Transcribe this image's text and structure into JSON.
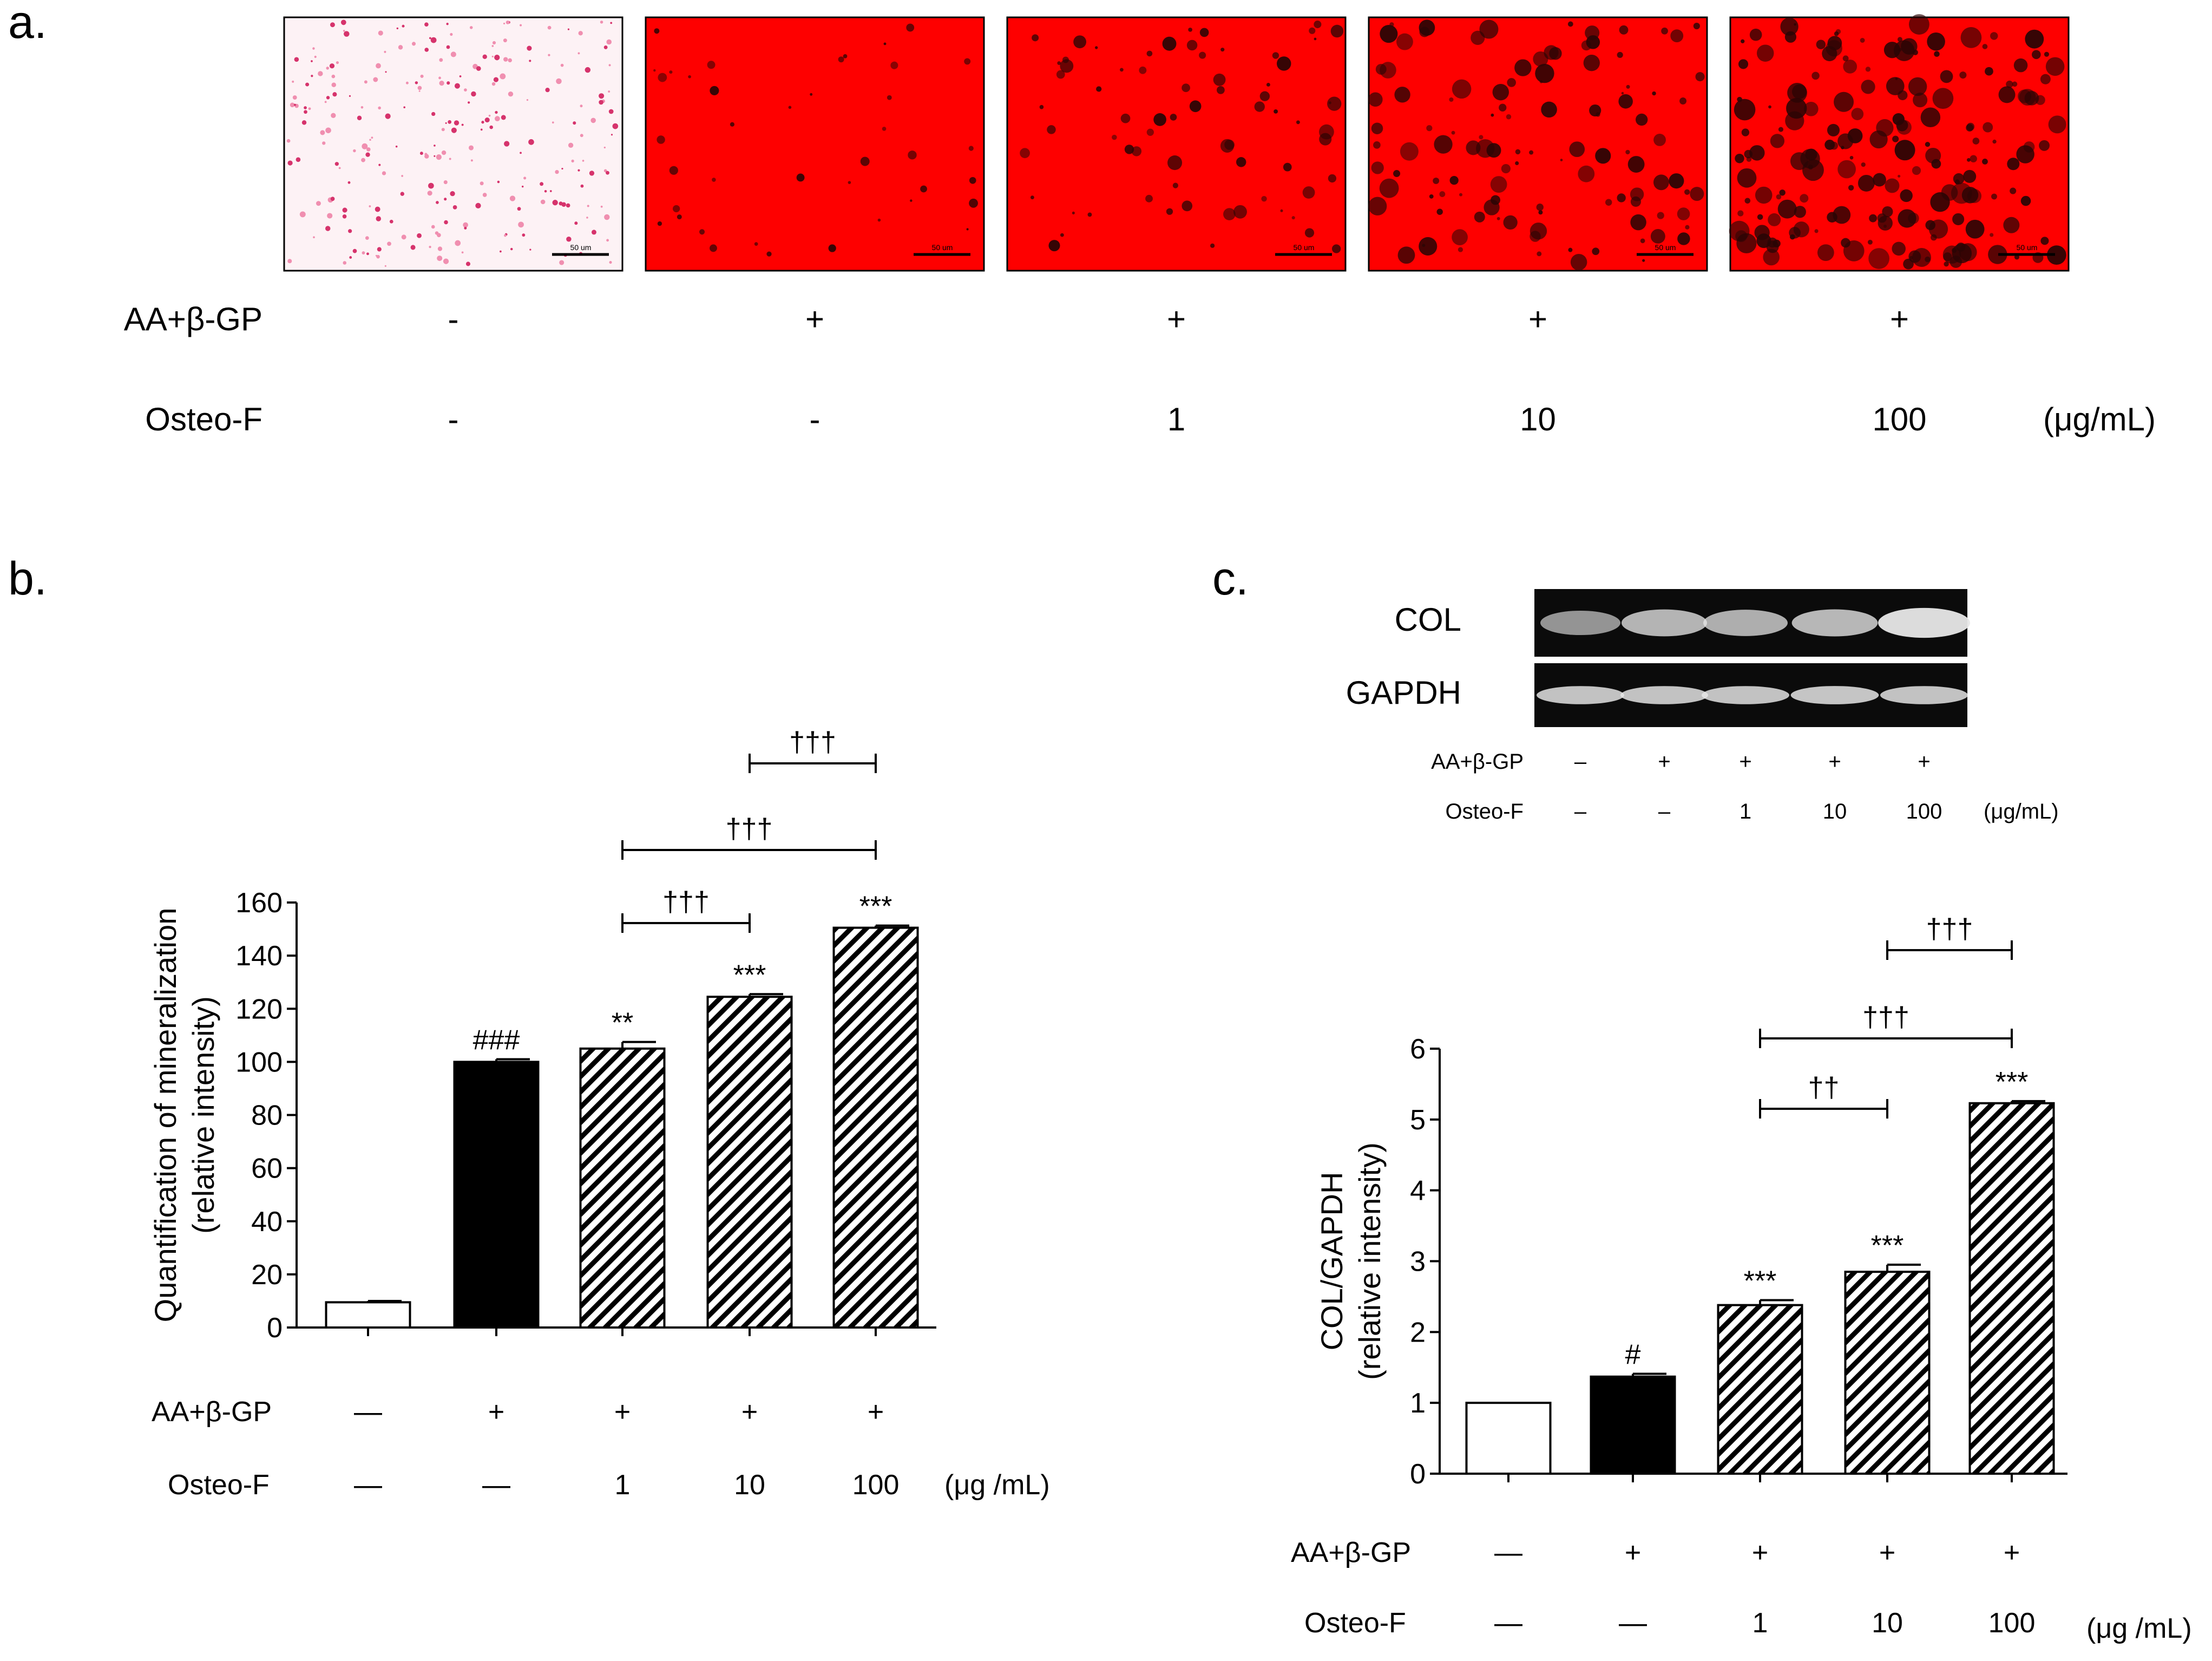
{
  "colors": {
    "control_image_bg": "#fdf2f5",
    "stain_red": "#fe0000",
    "bar_black": "#000000",
    "bar_white": "#ffffff",
    "gel_bg": "#0b0b0b",
    "band": "#e8e8e8"
  },
  "panel_a": {
    "letter": "a.",
    "scale_bar_label": "50 um",
    "row1_label": "AA+β-GP",
    "row2_label": "Osteo-F",
    "unit": "(μg/mL)",
    "treatments": [
      {
        "aa": "-",
        "osteo": "-"
      },
      {
        "aa": "+",
        "osteo": "-"
      },
      {
        "aa": "+",
        "osteo": "1"
      },
      {
        "aa": "+",
        "osteo": "10"
      },
      {
        "aa": "+",
        "osteo": "100"
      }
    ],
    "image_style": [
      "sparse-pink-dots",
      "dense-red",
      "dense-red-few-nodules",
      "dense-red-nodules",
      "dense-red-many-nodules"
    ]
  },
  "panel_b": {
    "letter": "b.",
    "row1_label": "AA+β-GP",
    "row2_label": "Osteo-F",
    "unit": "(μg /mL)",
    "treatments": [
      {
        "aa": "—",
        "osteo": "—"
      },
      {
        "aa": "+",
        "osteo": "—"
      },
      {
        "aa": "+",
        "osteo": "1"
      },
      {
        "aa": "+",
        "osteo": "10"
      },
      {
        "aa": "+",
        "osteo": "100"
      }
    ]
  },
  "panel_c": {
    "letter": "c.",
    "blot": {
      "row_labels": [
        "COL",
        "GAPDH"
      ],
      "row1_label": "AA+β-GP",
      "row2_label": "Osteo-F",
      "unit": "(μg/mL)",
      "treatments": [
        {
          "aa": "–",
          "osteo": "–"
        },
        {
          "aa": "+",
          "osteo": "–"
        },
        {
          "aa": "+",
          "osteo": "1"
        },
        {
          "aa": "+",
          "osteo": "10"
        },
        {
          "aa": "+",
          "osteo": "100"
        }
      ],
      "col_band_intensity": [
        0.45,
        0.7,
        0.65,
        0.72,
        1.0
      ],
      "gapdh_band_intensity": [
        0.8,
        0.8,
        0.8,
        0.82,
        0.8
      ]
    },
    "row1_label": "AA+β-GP",
    "row2_label": "Osteo-F",
    "unit": "(μg /mL)",
    "treatments": [
      {
        "aa": "—",
        "osteo": "—"
      },
      {
        "aa": "+",
        "osteo": "—"
      },
      {
        "aa": "+",
        "osteo": "1"
      },
      {
        "aa": "+",
        "osteo": "10"
      },
      {
        "aa": "+",
        "osteo": "100"
      }
    ]
  },
  "chart_data": [
    {
      "id": "b",
      "type": "bar",
      "ylabel": "Quantification of mineralization",
      "ylabel2": "(relative intensity)",
      "ylim": [
        0,
        160
      ],
      "yticks": [
        0,
        20,
        40,
        60,
        80,
        100,
        120,
        140,
        160
      ],
      "values": [
        9.5,
        100,
        105,
        124.5,
        150.5
      ],
      "errors": [
        0.5,
        1,
        2.5,
        1,
        0.8
      ],
      "fills": [
        "white",
        "black",
        "hatch",
        "hatch",
        "hatch"
      ],
      "bar_labels": [
        "",
        "###",
        "**",
        "***",
        "***"
      ],
      "brackets": [
        {
          "from": 2,
          "to": 3,
          "label": "†††"
        },
        {
          "from": 2,
          "to": 4,
          "label": "†††"
        },
        {
          "from": 3,
          "to": 4,
          "label": "†††"
        }
      ]
    },
    {
      "id": "c",
      "type": "bar",
      "ylabel": "COL/GAPDH",
      "ylabel2": "(relative intensity)",
      "ylim": [
        0,
        6
      ],
      "yticks": [
        0,
        1,
        2,
        3,
        4,
        5,
        6
      ],
      "values": [
        1.0,
        1.37,
        2.38,
        2.85,
        5.23
      ],
      "errors": [
        0,
        0.04,
        0.07,
        0.1,
        0.03
      ],
      "fills": [
        "white",
        "black",
        "hatch",
        "hatch",
        "hatch"
      ],
      "bar_labels": [
        "",
        "#",
        "***",
        "***",
        "***"
      ],
      "brackets": [
        {
          "from": 2,
          "to": 3,
          "label": "††"
        },
        {
          "from": 2,
          "to": 4,
          "label": "†††"
        },
        {
          "from": 3,
          "to": 4,
          "label": "†††"
        }
      ]
    }
  ]
}
